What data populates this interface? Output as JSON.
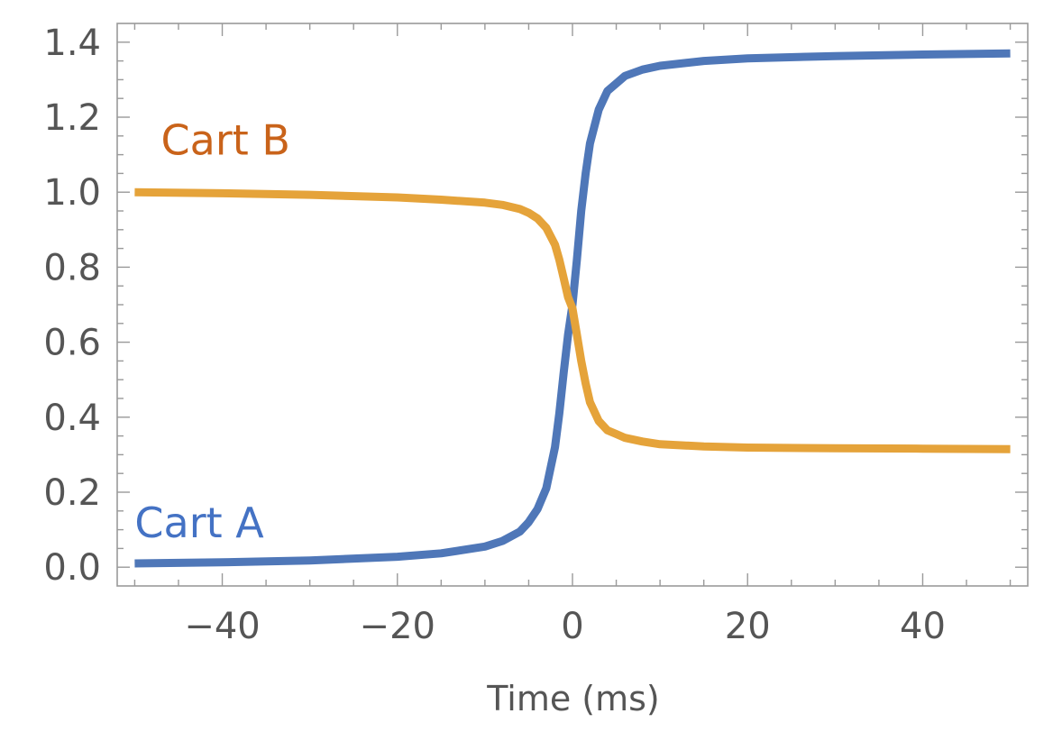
{
  "chart_data": {
    "type": "line",
    "title": "",
    "xlabel": "Time  (ms)",
    "ylabel": "",
    "xlim": [
      -52,
      52
    ],
    "ylim": [
      -0.05,
      1.45
    ],
    "grid": false,
    "x_ticks": [
      {
        "value": -40,
        "label": "−40"
      },
      {
        "value": -20,
        "label": "−20"
      },
      {
        "value": 0,
        "label": "0"
      },
      {
        "value": 20,
        "label": "20"
      },
      {
        "value": 40,
        "label": "40"
      }
    ],
    "y_ticks": [
      {
        "value": 0.0,
        "label": "0.0"
      },
      {
        "value": 0.2,
        "label": "0.2"
      },
      {
        "value": 0.4,
        "label": "0.4"
      },
      {
        "value": 0.6,
        "label": "0.6"
      },
      {
        "value": 0.8,
        "label": "0.8"
      },
      {
        "value": 1.0,
        "label": "1.0"
      },
      {
        "value": 1.2,
        "label": "1.2"
      },
      {
        "value": 1.4,
        "label": "1.4"
      }
    ],
    "series": [
      {
        "name": "Cart A",
        "color": "#4f77b8",
        "label_color": "#4472c4",
        "label_position": {
          "x": -50,
          "y": 0.08
        },
        "x": [
          -50,
          -40,
          -30,
          -20,
          -15,
          -10,
          -8,
          -6,
          -5,
          -4,
          -3,
          -2,
          -1.5,
          -1,
          -0.5,
          0,
          0.5,
          1,
          1.5,
          2,
          3,
          4,
          5,
          6,
          8,
          10,
          15,
          20,
          30,
          40,
          50
        ],
        "y": [
          0.01,
          0.013,
          0.018,
          0.028,
          0.037,
          0.055,
          0.07,
          0.095,
          0.12,
          0.155,
          0.21,
          0.32,
          0.41,
          0.52,
          0.62,
          0.7,
          0.82,
          0.95,
          1.05,
          1.13,
          1.22,
          1.27,
          1.29,
          1.31,
          1.327,
          1.337,
          1.35,
          1.357,
          1.363,
          1.367,
          1.37
        ]
      },
      {
        "name": "Cart B",
        "color": "#e5a33a",
        "label_color": "#c9631a",
        "label_position": {
          "x": -47,
          "y": 1.1
        },
        "x": [
          -50,
          -40,
          -30,
          -20,
          -15,
          -10,
          -8,
          -6,
          -5,
          -4,
          -3,
          -2,
          -1.5,
          -1,
          -0.5,
          0,
          0.5,
          1,
          1.5,
          2,
          3,
          4,
          5,
          6,
          8,
          10,
          15,
          20,
          30,
          40,
          50
        ],
        "y": [
          1.0,
          0.997,
          0.993,
          0.986,
          0.98,
          0.972,
          0.966,
          0.955,
          0.945,
          0.93,
          0.905,
          0.86,
          0.82,
          0.77,
          0.72,
          0.69,
          0.62,
          0.55,
          0.49,
          0.44,
          0.39,
          0.365,
          0.355,
          0.345,
          0.335,
          0.328,
          0.322,
          0.319,
          0.317,
          0.316,
          0.315
        ]
      }
    ]
  }
}
